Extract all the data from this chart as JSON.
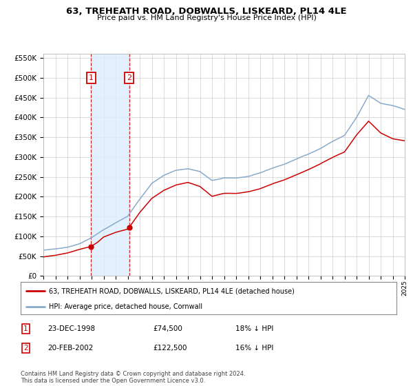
{
  "title": "63, TREHEATH ROAD, DOBWALLS, LISKEARD, PL14 4LE",
  "subtitle": "Price paid vs. HM Land Registry's House Price Index (HPI)",
  "legend_label_red": "63, TREHEATH ROAD, DOBWALLS, LISKEARD, PL14 4LE (detached house)",
  "legend_label_blue": "HPI: Average price, detached house, Cornwall",
  "footnote": "Contains HM Land Registry data © Crown copyright and database right 2024.\nThis data is licensed under the Open Government Licence v3.0.",
  "table_rows": [
    [
      "1",
      "23-DEC-1998",
      "£74,500",
      "18% ↓ HPI"
    ],
    [
      "2",
      "20-FEB-2002",
      "£122,500",
      "16% ↓ HPI"
    ]
  ],
  "background_color": "#ffffff",
  "grid_color": "#cccccc",
  "red_line_color": "#cc0000",
  "blue_line_color": "#88aacc",
  "shaded_region_color": "#ddeeff",
  "marker_box_color": "#cc0000",
  "ylim": [
    0,
    560000
  ],
  "yticks": [
    0,
    50000,
    100000,
    150000,
    200000,
    250000,
    300000,
    350000,
    400000,
    450000,
    500000,
    550000
  ],
  "year_start": 1995,
  "year_end": 2025,
  "t1_year": 1998.96,
  "t2_year": 2002.12,
  "t1_price": 74500,
  "t2_price": 122500
}
